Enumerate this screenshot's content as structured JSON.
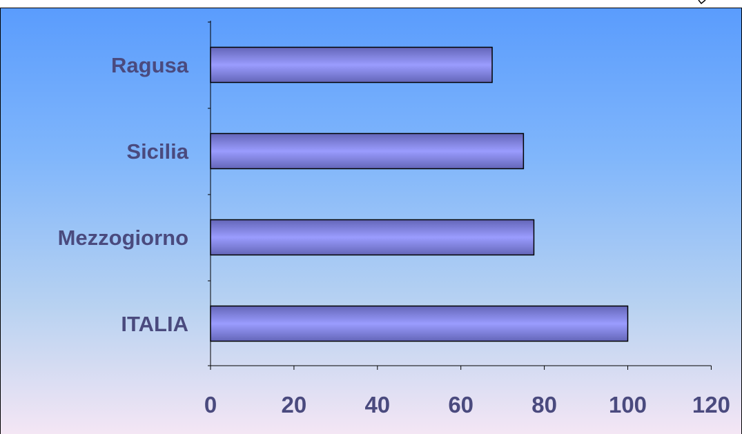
{
  "colors": {
    "bar_fill_light": "#9a9cfe",
    "bar_fill_dark": "#6466b8",
    "label_color": "#4a4a7e",
    "background_top": "#5a9cfd",
    "background_bottom": "#f4e6f4"
  },
  "chart_data": {
    "type": "bar",
    "orientation": "horizontal",
    "categories": [
      "Ragusa",
      "Sicilia",
      "Mezzogiorno",
      "ITALIA"
    ],
    "values": [
      67.5,
      75,
      77.5,
      100
    ],
    "x_ticks": [
      "0",
      "20",
      "40",
      "60",
      "80",
      "100",
      "120"
    ],
    "xlim": [
      0,
      120
    ],
    "title": "",
    "xlabel": "",
    "ylabel": "",
    "grid": false,
    "legend": "none"
  }
}
